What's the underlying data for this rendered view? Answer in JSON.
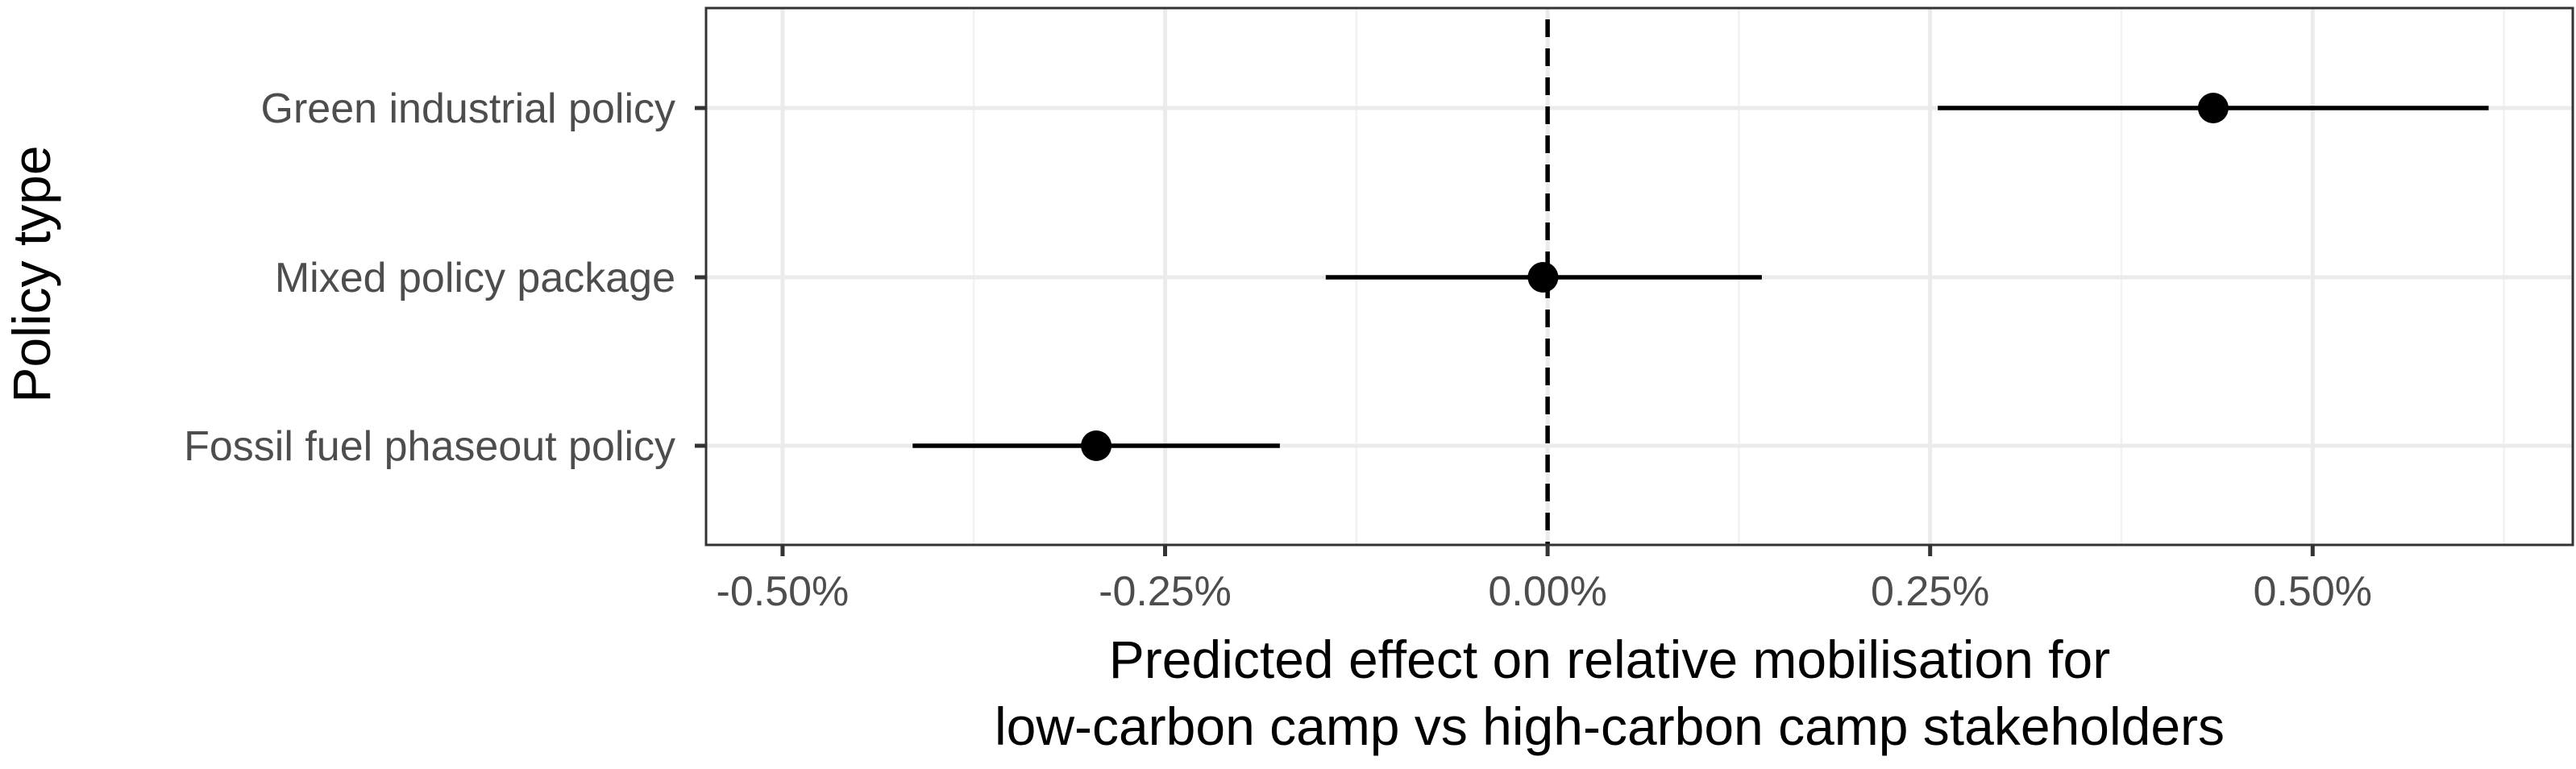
{
  "chart_data": {
    "type": "scatter",
    "subtype": "point-range (coefficient plot)",
    "title": "",
    "xlabel": [
      "Predicted effect on relative mobilisation for",
      "low-carbon camp vs high-carbon camp stakeholders"
    ],
    "ylabel": "Policy type",
    "xlim": [
      -0.55,
      0.67
    ],
    "x_ticks": [
      -0.5,
      -0.25,
      0.0,
      0.25,
      0.5
    ],
    "x_tick_labels": [
      "-0.50%",
      "-0.25%",
      "0.00%",
      "0.25%",
      "0.50%"
    ],
    "x_minor_ticks": [
      -0.375,
      -0.125,
      0.125,
      0.375,
      0.625
    ],
    "grid": true,
    "reference_line": {
      "x": 0.0,
      "style": "dashed"
    },
    "categories": [
      "Green industrial policy",
      "Mixed policy package",
      "Fossil fuel phaseout policy"
    ],
    "series": [
      {
        "estimate": [
          0.435,
          -0.003,
          -0.295
        ],
        "lower": [
          0.255,
          -0.145,
          -0.415
        ],
        "upper": [
          0.615,
          0.14,
          -0.175
        ]
      }
    ],
    "colors": {
      "points": "#000000",
      "grid": "#ebebeb",
      "border": "#333333",
      "tick_text": "#4d4d4d"
    }
  }
}
